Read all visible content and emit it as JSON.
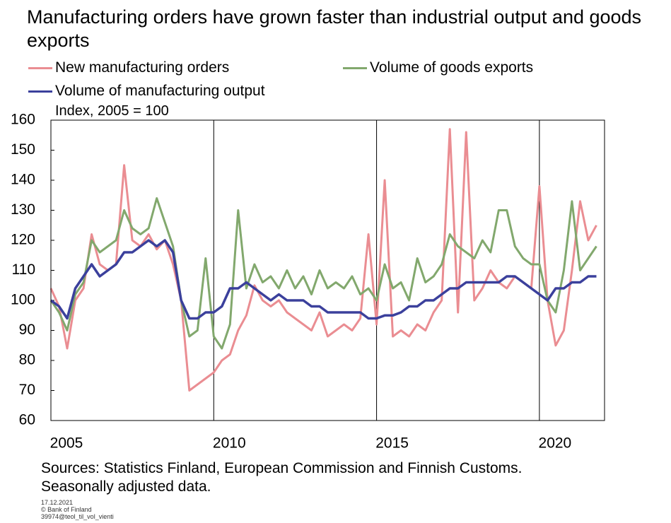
{
  "chart_data": {
    "type": "line",
    "title": "Manufacturing orders have grown faster than industrial output and goods exports",
    "subtitle": "Index, 2005 = 100",
    "x": [
      2005,
      2005.25,
      2005.5,
      2005.75,
      2006,
      2006.25,
      2006.5,
      2006.75,
      2007,
      2007.25,
      2007.5,
      2007.75,
      2008,
      2008.25,
      2008.5,
      2008.75,
      2009,
      2009.25,
      2009.5,
      2009.75,
      2010,
      2010.25,
      2010.5,
      2010.75,
      2011,
      2011.25,
      2011.5,
      2011.75,
      2012,
      2012.25,
      2012.5,
      2012.75,
      2013,
      2013.25,
      2013.5,
      2013.75,
      2014,
      2014.25,
      2014.5,
      2014.75,
      2015,
      2015.25,
      2015.5,
      2015.75,
      2016,
      2016.25,
      2016.5,
      2016.75,
      2017,
      2017.25,
      2017.5,
      2017.75,
      2018,
      2018.25,
      2018.5,
      2018.75,
      2019,
      2019.25,
      2019.5,
      2019.75,
      2020,
      2020.25,
      2020.5,
      2020.75,
      2021,
      2021.25,
      2021.5,
      2021.75
    ],
    "series": [
      {
        "name": "New manufacturing orders",
        "color": "#ea8d92",
        "values": [
          104,
          98,
          84,
          100,
          104,
          122,
          112,
          110,
          112,
          145,
          120,
          118,
          122,
          117,
          120,
          112,
          100,
          70,
          72,
          74,
          76,
          80,
          82,
          90,
          95,
          105,
          100,
          98,
          100,
          96,
          94,
          92,
          90,
          96,
          88,
          90,
          92,
          90,
          94,
          122,
          92,
          140,
          88,
          90,
          88,
          92,
          90,
          96,
          100,
          157,
          96,
          156,
          100,
          104,
          110,
          106,
          104,
          108,
          106,
          104,
          138,
          100,
          85,
          90,
          110,
          133,
          120,
          125
        ]
      },
      {
        "name": "Volume of goods exports",
        "color": "#82a86d",
        "values": [
          100,
          96,
          90,
          102,
          106,
          120,
          116,
          118,
          120,
          130,
          124,
          122,
          124,
          134,
          126,
          118,
          100,
          88,
          90,
          114,
          88,
          84,
          92,
          130,
          104,
          112,
          106,
          108,
          104,
          110,
          104,
          108,
          102,
          110,
          104,
          106,
          104,
          108,
          102,
          104,
          100,
          112,
          104,
          106,
          100,
          114,
          106,
          108,
          112,
          122,
          118,
          116,
          114,
          120,
          116,
          130,
          130,
          118,
          114,
          112,
          112,
          100,
          96,
          110,
          133,
          110,
          114,
          118
        ]
      },
      {
        "name": "Volume of manufacturing output",
        "color": "#3b409c",
        "values": [
          100,
          98,
          94,
          104,
          108,
          112,
          108,
          110,
          112,
          116,
          116,
          118,
          120,
          118,
          120,
          116,
          100,
          94,
          94,
          96,
          96,
          98,
          104,
          104,
          106,
          104,
          102,
          100,
          102,
          100,
          100,
          100,
          98,
          98,
          96,
          96,
          96,
          96,
          96,
          94,
          94,
          95,
          95,
          96,
          98,
          98,
          100,
          100,
          102,
          104,
          104,
          106,
          106,
          106,
          106,
          106,
          108,
          108,
          106,
          104,
          102,
          100,
          104,
          104,
          106,
          106,
          108,
          108
        ]
      }
    ],
    "xlim": [
      2005,
      2022
    ],
    "xticks": [
      2005,
      2010,
      2015,
      2020
    ],
    "ylim": [
      60,
      160
    ],
    "yticks": [
      60,
      70,
      80,
      90,
      100,
      110,
      120,
      130,
      140,
      150,
      160
    ],
    "grid": "x",
    "notes": [
      "Sources: Statistics Finland, European Commission and Finnish Customs.",
      "Seasonally adjusted data."
    ],
    "footer": [
      "17.12.2021",
      "© Bank of Finland",
      "39974@teol_til_vol_vienti"
    ]
  }
}
